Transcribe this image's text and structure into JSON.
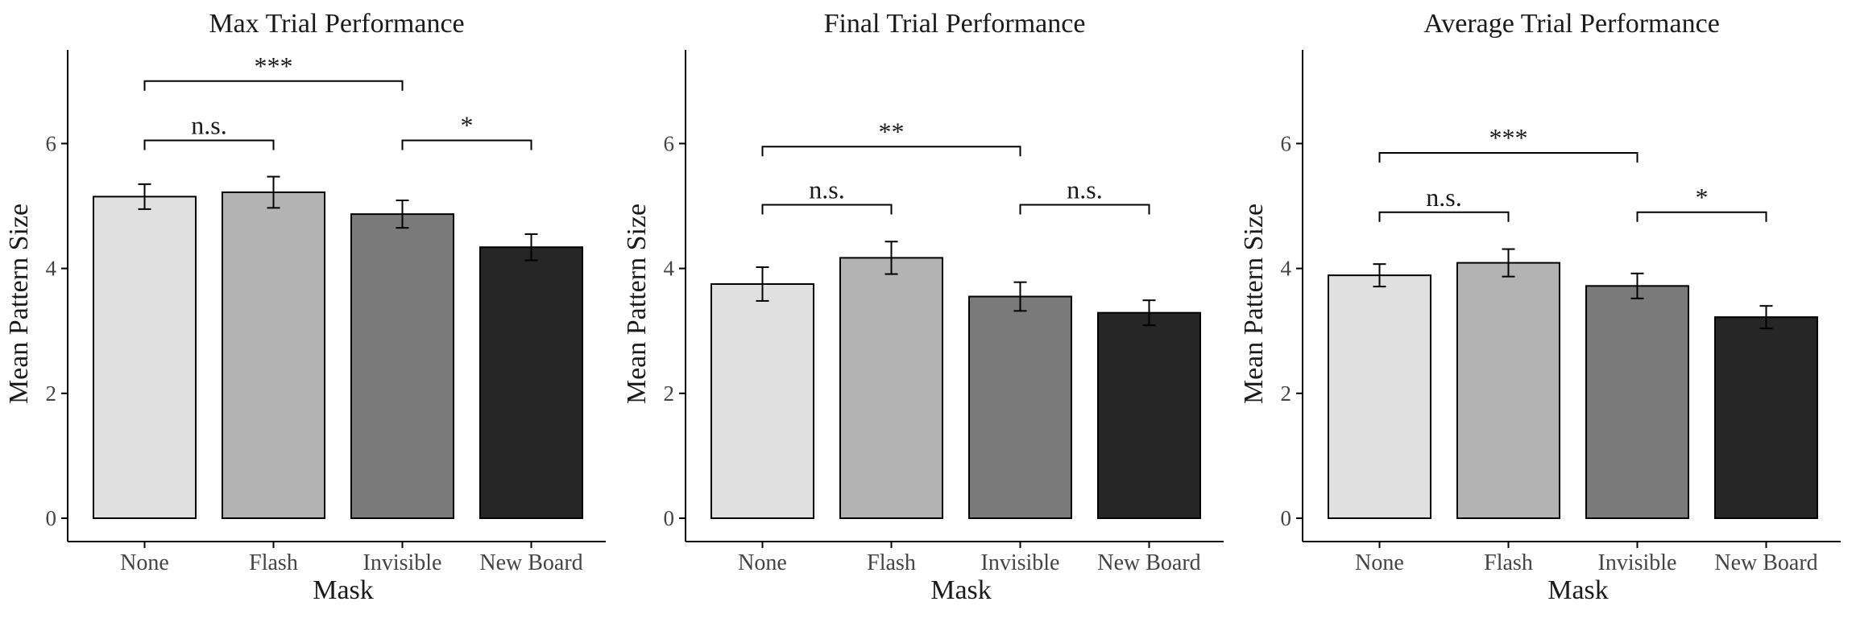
{
  "colors": {
    "bar_fills": [
      "#e0e0e0",
      "#b3b3b3",
      "#7a7a7a",
      "#262626"
    ],
    "axis": "#000000"
  },
  "chart_data": [
    {
      "type": "bar",
      "title": "Max Trial Performance",
      "xlabel": "Mask",
      "ylabel": "Mean Pattern Size",
      "ylim": [
        0,
        7.5
      ],
      "yticks": [
        0,
        2,
        4,
        6
      ],
      "grid": false,
      "categories": [
        "None",
        "Flash",
        "Invisible",
        "New Board"
      ],
      "values": [
        5.15,
        5.22,
        4.87,
        4.34
      ],
      "error": [
        0.2,
        0.25,
        0.22,
        0.21
      ],
      "significance": [
        {
          "from": 0,
          "to": 1,
          "label": "n.s.",
          "level": 6.05
        },
        {
          "from": 2,
          "to": 3,
          "label": "*",
          "level": 6.05
        },
        {
          "from": 0,
          "to": 2,
          "label": "***",
          "level": 7.0
        }
      ]
    },
    {
      "type": "bar",
      "title": "Final Trial Performance",
      "xlabel": "Mask",
      "ylabel": "Mean Pattern Size",
      "ylim": [
        0,
        7.5
      ],
      "yticks": [
        0,
        2,
        4,
        6
      ],
      "grid": false,
      "categories": [
        "None",
        "Flash",
        "Invisible",
        "New Board"
      ],
      "values": [
        3.75,
        4.17,
        3.55,
        3.29
      ],
      "error": [
        0.27,
        0.26,
        0.23,
        0.2
      ],
      "significance": [
        {
          "from": 0,
          "to": 1,
          "label": "n.s.",
          "level": 5.02
        },
        {
          "from": 2,
          "to": 3,
          "label": "n.s.",
          "level": 5.02
        },
        {
          "from": 0,
          "to": 2,
          "label": "**",
          "level": 5.95
        }
      ]
    },
    {
      "type": "bar",
      "title": "Average Trial Performance",
      "xlabel": "Mask",
      "ylabel": "Mean Pattern Size",
      "ylim": [
        0,
        7.5
      ],
      "yticks": [
        0,
        2,
        4,
        6
      ],
      "grid": false,
      "categories": [
        "None",
        "Flash",
        "Invisible",
        "New Board"
      ],
      "values": [
        3.89,
        4.09,
        3.72,
        3.22
      ],
      "error": [
        0.18,
        0.22,
        0.2,
        0.18
      ],
      "significance": [
        {
          "from": 0,
          "to": 1,
          "label": "n.s.",
          "level": 4.9
        },
        {
          "from": 2,
          "to": 3,
          "label": "*",
          "level": 4.9
        },
        {
          "from": 0,
          "to": 2,
          "label": "***",
          "level": 5.85
        }
      ]
    }
  ]
}
